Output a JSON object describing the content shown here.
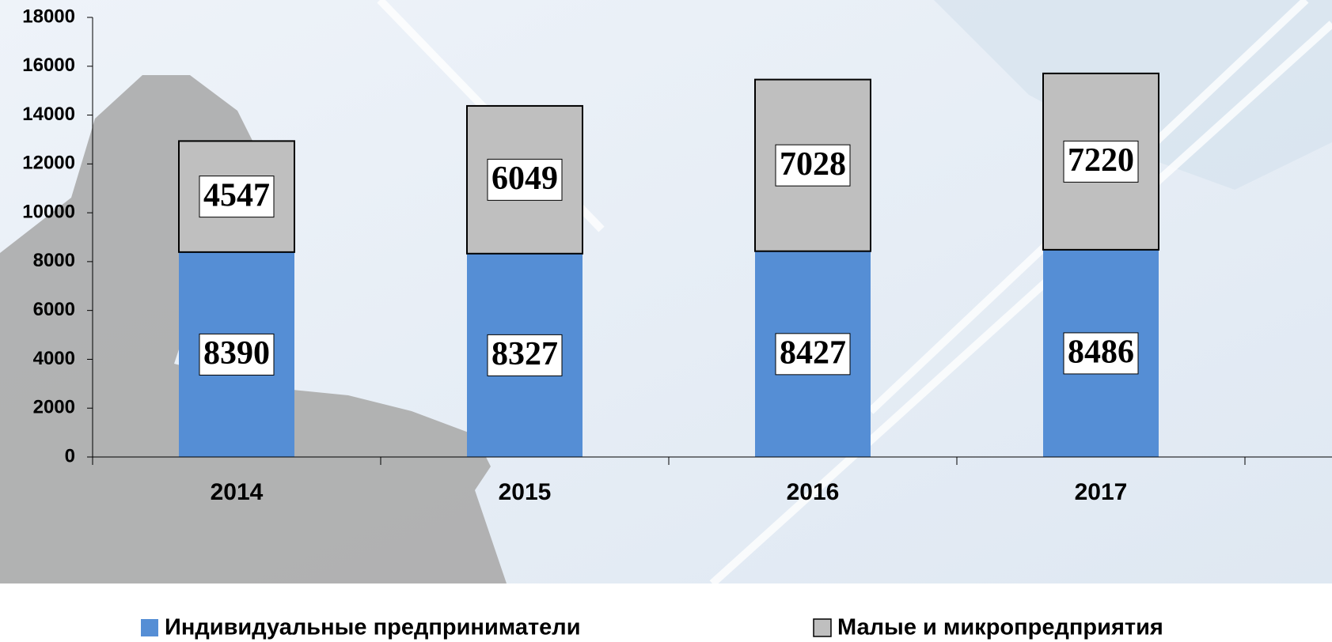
{
  "chart_data": {
    "type": "stacked_bar",
    "categories": [
      "2014",
      "2015",
      "2016",
      "2017"
    ],
    "series": [
      {
        "name": "Индивидуальные предприниматели",
        "color": "#558ed5",
        "values": [
          8390,
          8327,
          8427,
          8486
        ]
      },
      {
        "name": "Малые и микропредприятия",
        "color": "#bfbfbf",
        "values": [
          4547,
          6049,
          7028,
          7220
        ]
      }
    ],
    "ylim": [
      0,
      18000
    ],
    "yticks": [
      0,
      2000,
      4000,
      6000,
      8000,
      10000,
      12000,
      14000,
      16000,
      18000
    ],
    "grid": false,
    "legend": "bottom"
  }
}
